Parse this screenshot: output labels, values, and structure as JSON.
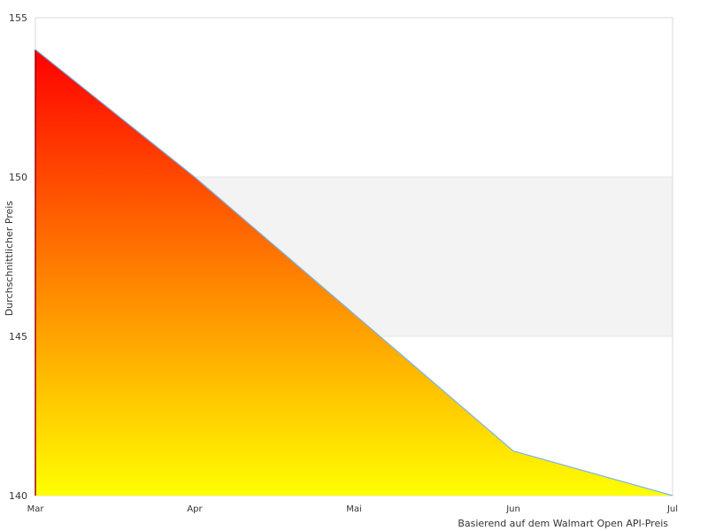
{
  "chart_data": {
    "type": "area",
    "title": "",
    "xlabel": "",
    "ylabel": "Durchschnittlicher Preis",
    "note": "Basierend auf dem Walmart Open API-Preis",
    "categories": [
      "Mar",
      "Apr",
      "Mai",
      "Jun",
      "Jul"
    ],
    "series": [
      {
        "values": [
          154,
          150,
          145.7,
          141.4,
          140
        ]
      }
    ],
    "ylim": [
      140,
      155
    ],
    "yticks": [
      "140",
      "145",
      "150",
      "155"
    ],
    "grid": "alternating horizontal bands",
    "legend": "none",
    "colors": {
      "gradient_top": "#ff0000",
      "gradient_bottom": "#ffff00",
      "line": "#7cb5ec",
      "band": "#f3f3f3",
      "axis": "#d8d8d8"
    }
  }
}
